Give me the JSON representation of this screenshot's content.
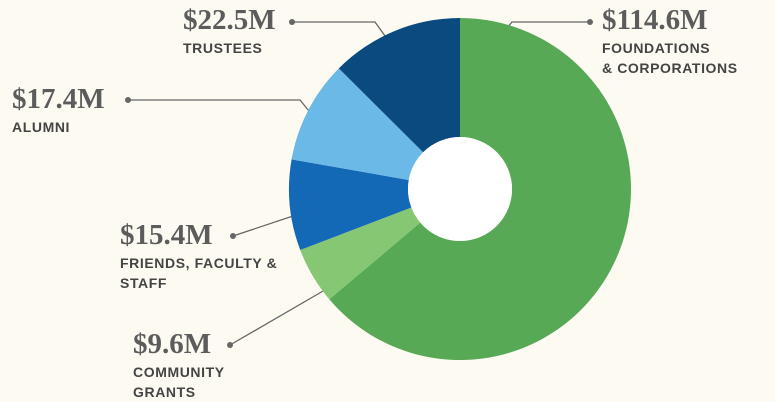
{
  "chart_data": {
    "type": "donut",
    "categories": [
      "FOUNDATIONS\n& CORPORATIONS",
      "COMMUNITY\nGRANTS",
      "FRIENDS, FACULTY &\nSTAFF",
      "ALUMNI",
      "TRUSTEES"
    ],
    "values": [
      114.6,
      9.6,
      15.4,
      17.4,
      22.5
    ],
    "value_labels": [
      "$114.6M",
      "$9.6M",
      "$15.4M",
      "$17.4M",
      "$22.5M"
    ],
    "colors": [
      "#57a955",
      "#86c774",
      "#1469b7",
      "#6ab9e6",
      "#0b4a7e"
    ]
  }
}
